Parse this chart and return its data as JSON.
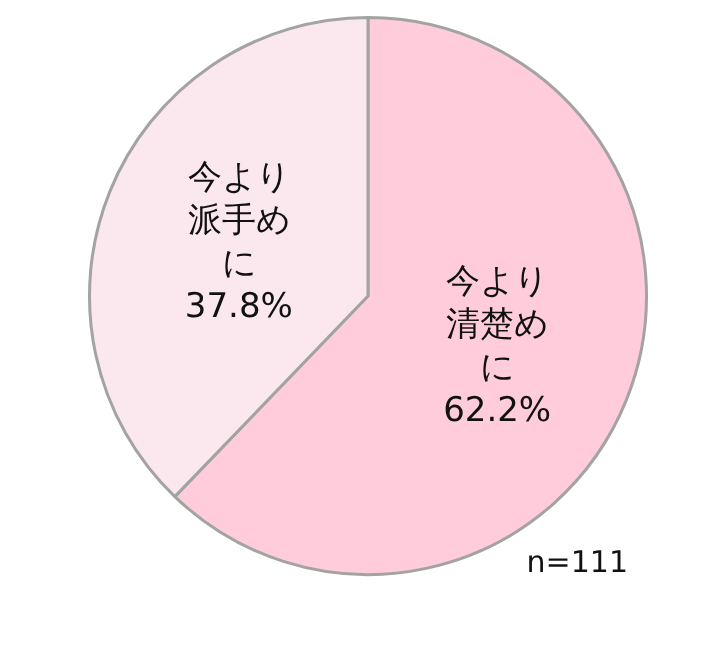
{
  "chart_data": {
    "type": "pie",
    "categories": [
      "今より清楚めに",
      "今より派手めに"
    ],
    "values": [
      62.2,
      37.8
    ],
    "colors": [
      "#ffccdb",
      "#fbe7ee"
    ],
    "value_labels": [
      "62.2%",
      "37.8%"
    ],
    "annotations": [
      "n=111"
    ]
  }
}
